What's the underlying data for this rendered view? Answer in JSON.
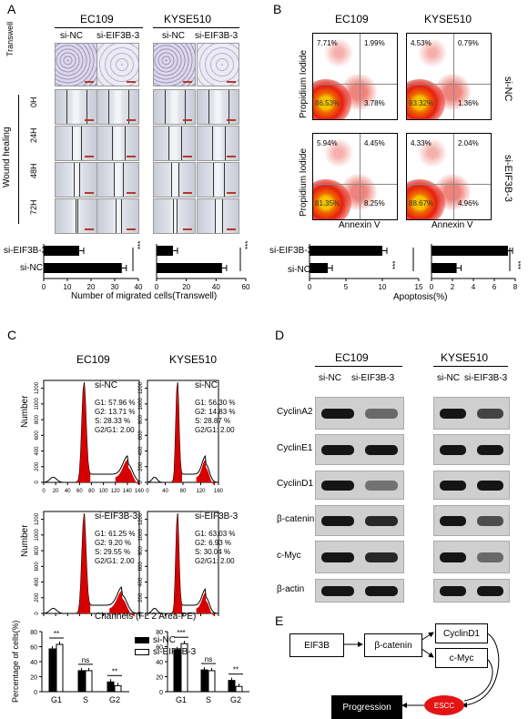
{
  "panelA": {
    "letter": "A",
    "cell_lines": [
      "EC109",
      "KYSE510"
    ],
    "groups": [
      "si-NC",
      "si-EIF3B-3",
      "si-NC",
      "si-EIF3B-3"
    ],
    "row_transwell": "Transwell",
    "row_wound": "Wound healing",
    "timepoints": [
      "0H",
      "24H",
      "48H",
      "72H"
    ],
    "bar_labels": [
      "si-EIF3B-3",
      "si-NC"
    ],
    "xlabel": "Number of migrated cells(Transwell)",
    "sig": "***"
  },
  "panelB": {
    "letter": "B",
    "cell_lines": [
      "EC109",
      "KYSE510"
    ],
    "row_labels": [
      "si-NC",
      "si-EIF3B-3"
    ],
    "ylabel": "Propidium Iodide",
    "xlabel": "Annexin V",
    "quadrants": [
      [
        "7.71%",
        "1.99%",
        "86.53%",
        "3.78%"
      ],
      [
        "4.53%",
        "0.79%",
        "93.32%",
        "1.36%"
      ],
      [
        "5.94%",
        "4.45%",
        "81.35%",
        "8.25%"
      ],
      [
        "4.33%",
        "2.04%",
        "88.67%",
        "4.96%"
      ]
    ],
    "bar_labels": [
      "si-EIF3B-3",
      "si-NC"
    ],
    "bar_xlabel": "Apoptosis(%)",
    "sig": "***"
  },
  "panelC": {
    "letter": "C",
    "cell_lines": [
      "EC109",
      "KYSE510"
    ],
    "ylabel": "Number",
    "xlabel": "Channels (FL 2 Area-PE)",
    "hists": [
      {
        "name": "si-NC",
        "lines": [
          "G1: 57.96 %",
          "G2: 13.71 %",
          "S: 28.33 %",
          "G2/G1: 2.00"
        ]
      },
      {
        "name": "si-NC",
        "lines": [
          "G1: 56.30 %",
          "G2: 14.83 %",
          "S: 28.87 %",
          "G2/G1: 2.00"
        ]
      },
      {
        "name": "si-EIF3B-3",
        "lines": [
          "G1: 61.25 %",
          "G2: 9.20 %",
          "S: 29.55 %",
          "G2/G1: 2.00"
        ]
      },
      {
        "name": "si-EIF3B-3",
        "lines": [
          "G1: 63.03 %",
          "G2: 6.93 %",
          "S: 30.04 %",
          "G2/G1: 2.00"
        ]
      }
    ],
    "bar_ylabel": "Percentage of cells(%)",
    "legend": [
      "si-NC",
      "si-EIF3B-3"
    ],
    "sig": [
      "**",
      "ns",
      "**",
      "***",
      "ns",
      "**"
    ]
  },
  "panelD": {
    "letter": "D",
    "cell_lines": [
      "EC109",
      "KYSE510"
    ],
    "groups": [
      "si-NC",
      "si-EIF3B-3",
      "si-NC",
      "si-EIF3B-3"
    ],
    "proteins": [
      "CyclinA2",
      "CyclinE1",
      "CyclinD1",
      "β-catenin",
      "c-Myc",
      "β-actin"
    ]
  },
  "panelE": {
    "letter": "E",
    "nodes": [
      "EIF3B",
      "β-catenin",
      "CyclinD1",
      "c-Myc",
      "ESCC",
      "Progression"
    ]
  },
  "chart_data": [
    {
      "type": "bar",
      "categories": [
        "si-EIF3B-3",
        "si-NC"
      ],
      "values": [
        15,
        33
      ],
      "xlabel": "Number of migrated cells(Transwell)",
      "xlim": [
        0,
        40
      ],
      "ticks": [
        0,
        10,
        20,
        30,
        40
      ]
    },
    {
      "type": "bar",
      "categories": [
        "si-EIF3B-3",
        "si-NC"
      ],
      "values": [
        11,
        44
      ],
      "xlabel": "",
      "xlim": [
        0,
        60
      ],
      "ticks": [
        0,
        20,
        40,
        60
      ]
    },
    {
      "type": "bar",
      "categories": [
        "si-EIF3B-3",
        "si-NC"
      ],
      "values": [
        10,
        2.5
      ],
      "xlabel": "Apoptosis(%)",
      "xlim": [
        0,
        15
      ],
      "ticks": [
        0,
        5,
        10,
        15
      ]
    },
    {
      "type": "bar",
      "categories": [
        "si-EIF3B-3",
        "si-NC"
      ],
      "values": [
        7.3,
        2.4
      ],
      "xlabel": "",
      "xlim": [
        0,
        8
      ],
      "ticks": [
        0,
        2,
        4,
        6,
        8
      ]
    },
    {
      "type": "bar",
      "categories": [
        "G1",
        "S",
        "G2"
      ],
      "series": [
        {
          "name": "si-NC",
          "values": [
            57,
            28,
            13
          ]
        },
        {
          "name": "si-EIF3B-3",
          "values": [
            63,
            28,
            8
          ]
        }
      ],
      "ylabel": "Percentage of cells(%)",
      "ylim": [
        0,
        80
      ],
      "ticks": [
        0,
        20,
        40,
        60,
        80
      ]
    },
    {
      "type": "bar",
      "categories": [
        "G1",
        "S",
        "G2"
      ],
      "series": [
        {
          "name": "si-NC",
          "values": [
            56,
            29,
            15
          ]
        },
        {
          "name": "si-EIF3B-3",
          "values": [
            64,
            28,
            7
          ]
        }
      ],
      "ylabel": "",
      "ylim": [
        0,
        80
      ],
      "ticks": [
        0,
        20,
        40,
        60,
        80
      ]
    },
    {
      "type": "area",
      "name": "cell cycle histograms",
      "x_ticks": [
        0,
        20,
        40,
        60,
        80,
        100,
        120,
        140,
        160
      ],
      "y_ticks": [
        0,
        200,
        400,
        600,
        800,
        1000,
        1200
      ]
    }
  ]
}
